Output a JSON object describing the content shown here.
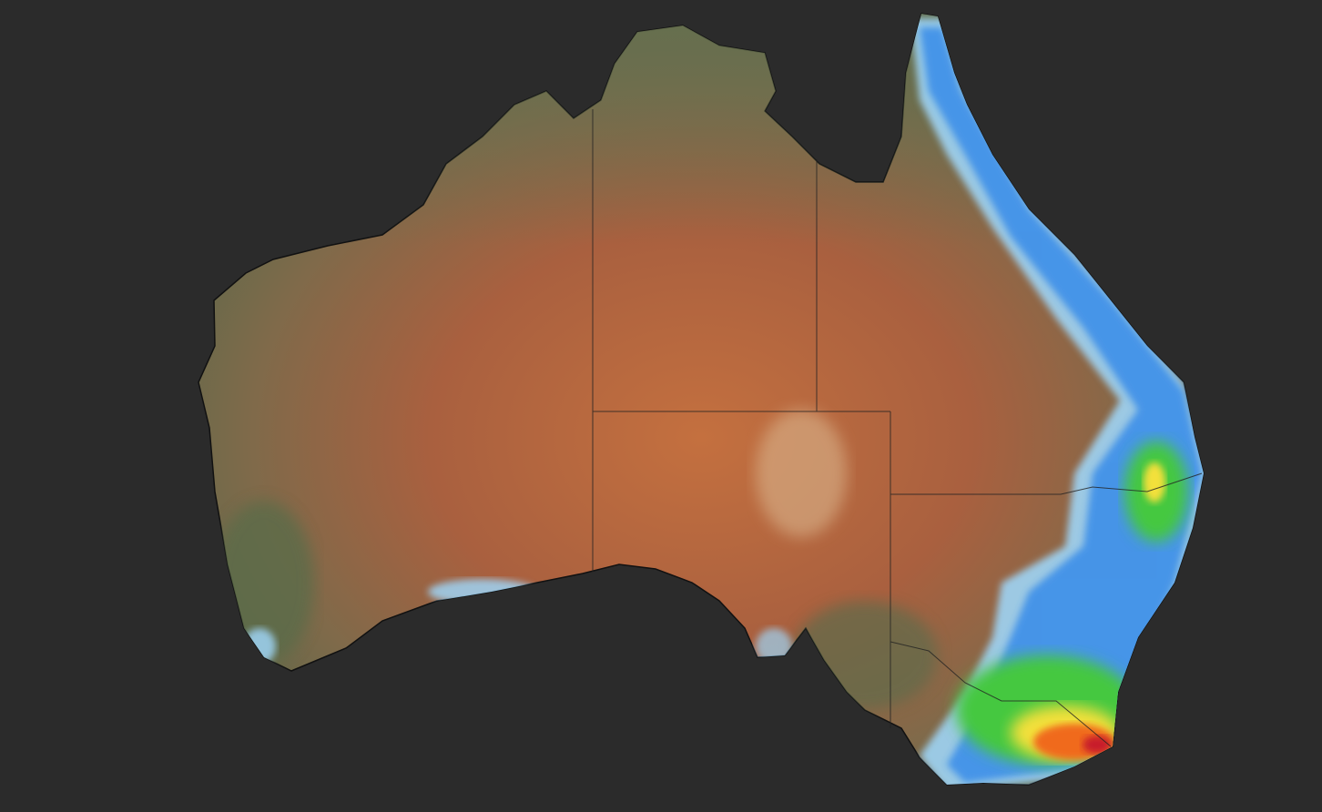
{
  "map": {
    "colors": {
      "background": "#2b2b2b",
      "land_arid": "#b5643f",
      "land_vegetated": "#5f6e4c",
      "rain_light": "#9fd4f5",
      "rain_moderate": "#3d8fe8",
      "rain_heavy": "#45c840",
      "rain_very_heavy": "#f3e03a",
      "rain_intense": "#f06a1c",
      "rain_extreme": "#c81e2a"
    }
  }
}
